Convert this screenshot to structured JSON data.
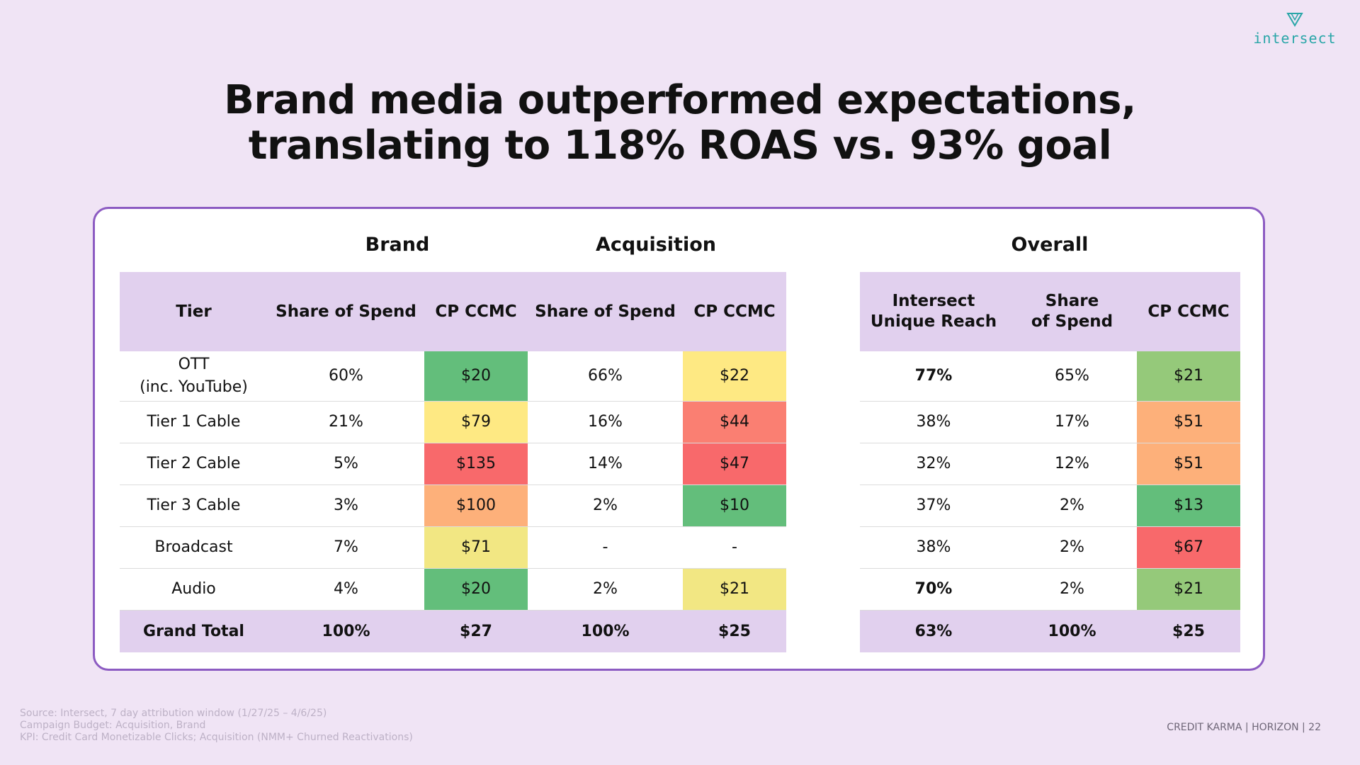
{
  "brand": {
    "logo_text": "intersect"
  },
  "title": {
    "line1": "Brand media outperformed expectations,",
    "line2": "translating to 118% ROAS vs. 93% goal"
  },
  "groups": {
    "brand": "Brand",
    "acquisition": "Acquisition",
    "overall": "Overall"
  },
  "left_table": {
    "headers": [
      "Tier",
      "Share of Spend",
      "CP CCMC",
      "Share of Spend",
      "CP CCMC"
    ],
    "rows": [
      {
        "tier_line1": "OTT",
        "tier_line2": "(inc. YouTube)",
        "brand_share": "60%",
        "brand_cp": "$20",
        "acq_share": "66%",
        "acq_cp": "$22"
      },
      {
        "tier_line1": "Tier 1 Cable",
        "tier_line2": "",
        "brand_share": "21%",
        "brand_cp": "$79",
        "acq_share": "16%",
        "acq_cp": "$44"
      },
      {
        "tier_line1": "Tier 2 Cable",
        "tier_line2": "",
        "brand_share": "5%",
        "brand_cp": "$135",
        "acq_share": "14%",
        "acq_cp": "$47"
      },
      {
        "tier_line1": "Tier 3 Cable",
        "tier_line2": "",
        "brand_share": "3%",
        "brand_cp": "$100",
        "acq_share": "2%",
        "acq_cp": "$10"
      },
      {
        "tier_line1": "Broadcast",
        "tier_line2": "",
        "brand_share": "7%",
        "brand_cp": "$71",
        "acq_share": "-",
        "acq_cp": "-"
      },
      {
        "tier_line1": "Audio",
        "tier_line2": "",
        "brand_share": "4%",
        "brand_cp": "$20",
        "acq_share": "2%",
        "acq_cp": "$21"
      }
    ],
    "total": {
      "tier": "Grand Total",
      "brand_share": "100%",
      "brand_cp": "$27",
      "acq_share": "100%",
      "acq_cp": "$25"
    }
  },
  "right_table": {
    "headers": [
      {
        "line1": "Intersect",
        "line2": "Unique Reach"
      },
      {
        "line1": "Share",
        "line2": "of Spend"
      },
      {
        "line1": "CP CCMC",
        "line2": ""
      }
    ],
    "rows": [
      {
        "reach": "77%",
        "share": "65%",
        "cp": "$21"
      },
      {
        "reach": "38%",
        "share": "17%",
        "cp": "$51"
      },
      {
        "reach": "32%",
        "share": "12%",
        "cp": "$51"
      },
      {
        "reach": "37%",
        "share": "2%",
        "cp": "$13"
      },
      {
        "reach": "38%",
        "share": "2%",
        "cp": "$67"
      },
      {
        "reach": "70%",
        "share": "2%",
        "cp": "$21"
      }
    ],
    "total": {
      "reach": "63%",
      "share": "100%",
      "cp": "$25"
    }
  },
  "footer": {
    "source": "Source: Intersect, 7 day attribution window (1/27/25 – 4/6/25)",
    "budget": "Campaign Budget: Acquisition, Brand",
    "kpi": "KPI: Credit Card Monetizable Clicks; Acquisition (NMM+ Churned Reactivations)",
    "right": "CREDIT KARMA  |  HORIZON  |  22"
  },
  "colors": {
    "background": "#f0e4f5",
    "card_border": "#8c5bc2",
    "header_fill": "#e1d0ee",
    "green_dark": "#63be7b",
    "green_light": "#95c97a",
    "yellow": "#fee983",
    "peach": "#fdb07a",
    "coral": "#fa7f72",
    "red": "#f8696b",
    "logo": "#2aa6a8"
  }
}
